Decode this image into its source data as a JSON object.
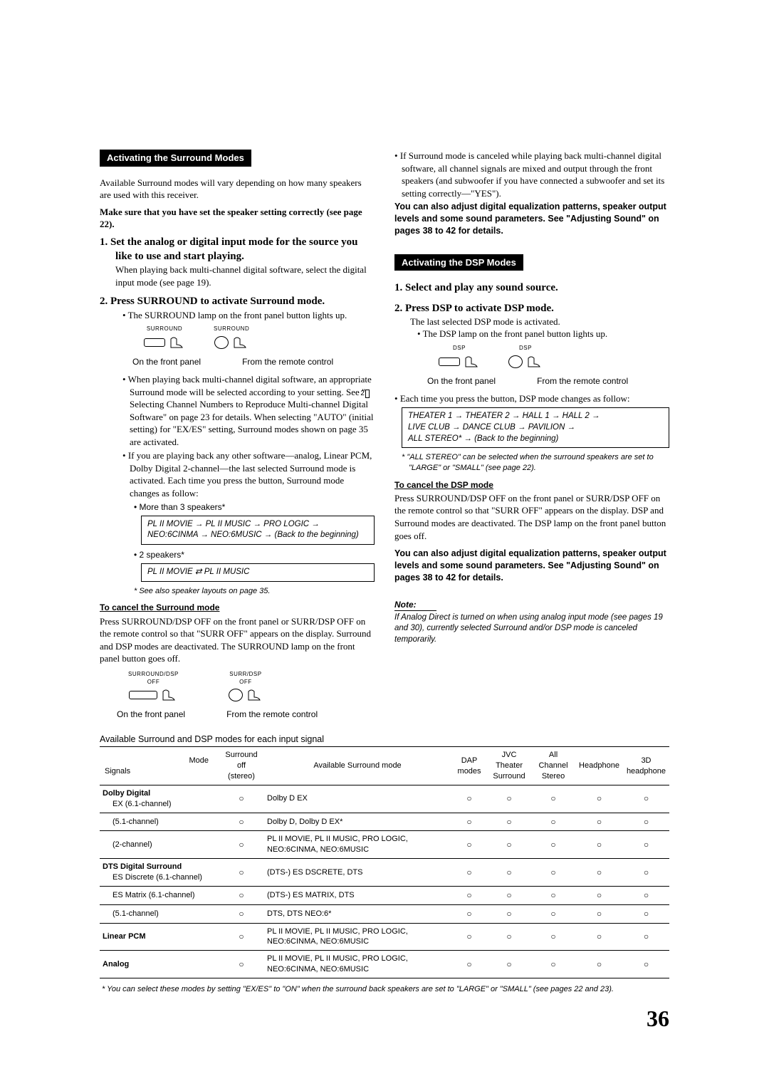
{
  "left": {
    "header": "Activating the Surround Modes",
    "intro": "Available Surround modes will vary depending on how many speakers are used with this receiver.",
    "intro_bold": "Make sure that you have set the speaker setting correctly (see page 22).",
    "step1_title": "1.  Set the analog or digital input mode for the source you like to use and start playing.",
    "step1_body": "When playing back multi-channel digital software, select the digital input mode (see page 19).",
    "step2_title": "2.  Press SURROUND to activate Surround mode.",
    "step2_bullet": "The SURROUND lamp on the front panel button lights up.",
    "icon_lbl1": "SURROUND",
    "icon_lbl2": "SURROUND",
    "cap_front": "On the front panel",
    "cap_remote": "From the remote control",
    "p_multich": "When playing back multi-channel digital software, an appropriate Surround mode will be selected according to your setting. See \"",
    "p_multich_num": "2",
    "p_multich_b": " Selecting Channel Numbers to Reproduce Multi-channel Digital Software\" on page 23 for details. When selecting \"AUTO\" (initial setting) for \"EX/ES\" setting, Surround modes shown on page 35 are activated.",
    "p_other": "If you are playing back any other software—analog, Linear PCM, Dolby Digital 2-channel—the last selected Surround mode is activated. Each time you press the button, Surround mode changes as follow:",
    "sub_more3": "More than 3 speakers*",
    "box1_a": "PL II MOVIE → PL II MUSIC → PRO LOGIC →",
    "box1_b": "NEO:6CINMA → NEO:6MUSIC →  (Back to the beginning)",
    "sub_2sp": "2 speakers*",
    "box2": "PL II MOVIE   ⇄   PL II MUSIC",
    "fn_layouts": "*  See also speaker layouts on page 35.",
    "cancel_hdr": "To cancel the Surround mode",
    "cancel_body": "Press SURROUND/DSP OFF on the front panel or SURR/DSP OFF on the remote control so that \"SURR OFF\" appears on the display. Surround and DSP modes are deactivated. The SURROUND lamp on the front panel button goes off.",
    "cancel_iclbl1": "SURROUND/DSP\nOFF",
    "cancel_iclbl2": "SURR/DSP\nOFF"
  },
  "right": {
    "top_bullet": "If Surround mode is canceled while playing back multi-channel digital software, all channel signals are mixed and output through the front speakers (and subwoofer if you have connected a subwoofer and set its setting correctly—\"YES\").",
    "bold_para": "You can also adjust digital equalization patterns, speaker output levels and some sound parameters. See \"Adjusting Sound\" on pages 38 to 42 for details.",
    "header": "Activating the DSP Modes",
    "step1_title": "1.  Select and play any sound source.",
    "step2_title": "2.  Press DSP to activate DSP mode.",
    "step2_body": "The last selected DSP mode is activated.",
    "step2_bullet": "The DSP lamp on the front panel button lights up.",
    "icon_lbl1": "DSP",
    "icon_lbl2": "DSP",
    "cap_front": "On the front panel",
    "cap_remote": "From the remote control",
    "each_bullet": "Each time you press the button, DSP mode changes as follow:",
    "box_a": "THEATER 1 → THEATER 2 → HALL 1 → HALL 2 →",
    "box_b": "LIVE CLUB → DANCE CLUB → PAVILION →",
    "box_c": "ALL STEREO* → (Back to the beginning)",
    "fn_allstereo": "*  \"ALL STEREO\" can be selected when the surround speakers are set to \"LARGE\" or \"SMALL\" (see page 22).",
    "cancel_hdr": "To cancel the DSP mode",
    "cancel_body": "Press SURROUND/DSP OFF on the front panel or SURR/DSP OFF on the remote control so that \"SURR OFF\" appears on the display. DSP and Surround modes are deactivated. The DSP lamp on the front panel button goes off.",
    "bold_para2": "You can also adjust digital equalization patterns, speaker output levels and some sound parameters. See \"Adjusting Sound\" on pages 38 to 42 for details.",
    "note_hdr": "Note:",
    "note_body": "If Analog Direct is turned on when using analog input mode (see pages 19 and 30), currently selected Surround and/or DSP mode is canceled temporarily."
  },
  "table_title": "Available Surround and DSP modes for each input signal",
  "table": {
    "headers": {
      "mode": "Mode",
      "signals": "Signals",
      "surround_off": "Surround off (stereo)",
      "asm": "Available Surround mode",
      "dap": "DAP modes",
      "jvc": "JVC Theater Surround",
      "allch": "All Channel Stereo",
      "hp": "Headphone",
      "hp3d": "3D headphone"
    },
    "rows": [
      {
        "grp": "Dolby Digital",
        "sig": "EX (6.1-channel)",
        "asm": "Dolby D EX"
      },
      {
        "sig": "(5.1-channel)",
        "asm": "Dolby D, Dolby D EX*"
      },
      {
        "sig": "(2-channel)",
        "asm": "PL II MOVIE, PL II MUSIC, PRO LOGIC, NEO:6CINMA, NEO:6MUSIC"
      },
      {
        "grp": "DTS Digital Surround",
        "sig": "ES Discrete (6.1-channel)",
        "asm": "(DTS-) ES DSCRETE, DTS"
      },
      {
        "sig": "ES Matrix (6.1-channel)",
        "asm": "(DTS-) ES MATRIX, DTS"
      },
      {
        "sig": "(5.1-channel)",
        "asm": "DTS, DTS NEO:6*"
      },
      {
        "grp": "Linear PCM",
        "sig": "",
        "asm": "PL II MOVIE, PL II MUSIC, PRO LOGIC, NEO:6CINMA, NEO:6MUSIC"
      },
      {
        "grp": "Analog",
        "sig": "",
        "asm": "PL II MOVIE, PL II MUSIC, PRO LOGIC, NEO:6CINMA, NEO:6MUSIC"
      }
    ]
  },
  "table_footnote": "*  You can select these modes by setting \"EX/ES\" to \"ON\" when the surround back speakers are set to \"LARGE\" or \"SMALL\" (see pages 22 and 23).",
  "page_number": "36"
}
